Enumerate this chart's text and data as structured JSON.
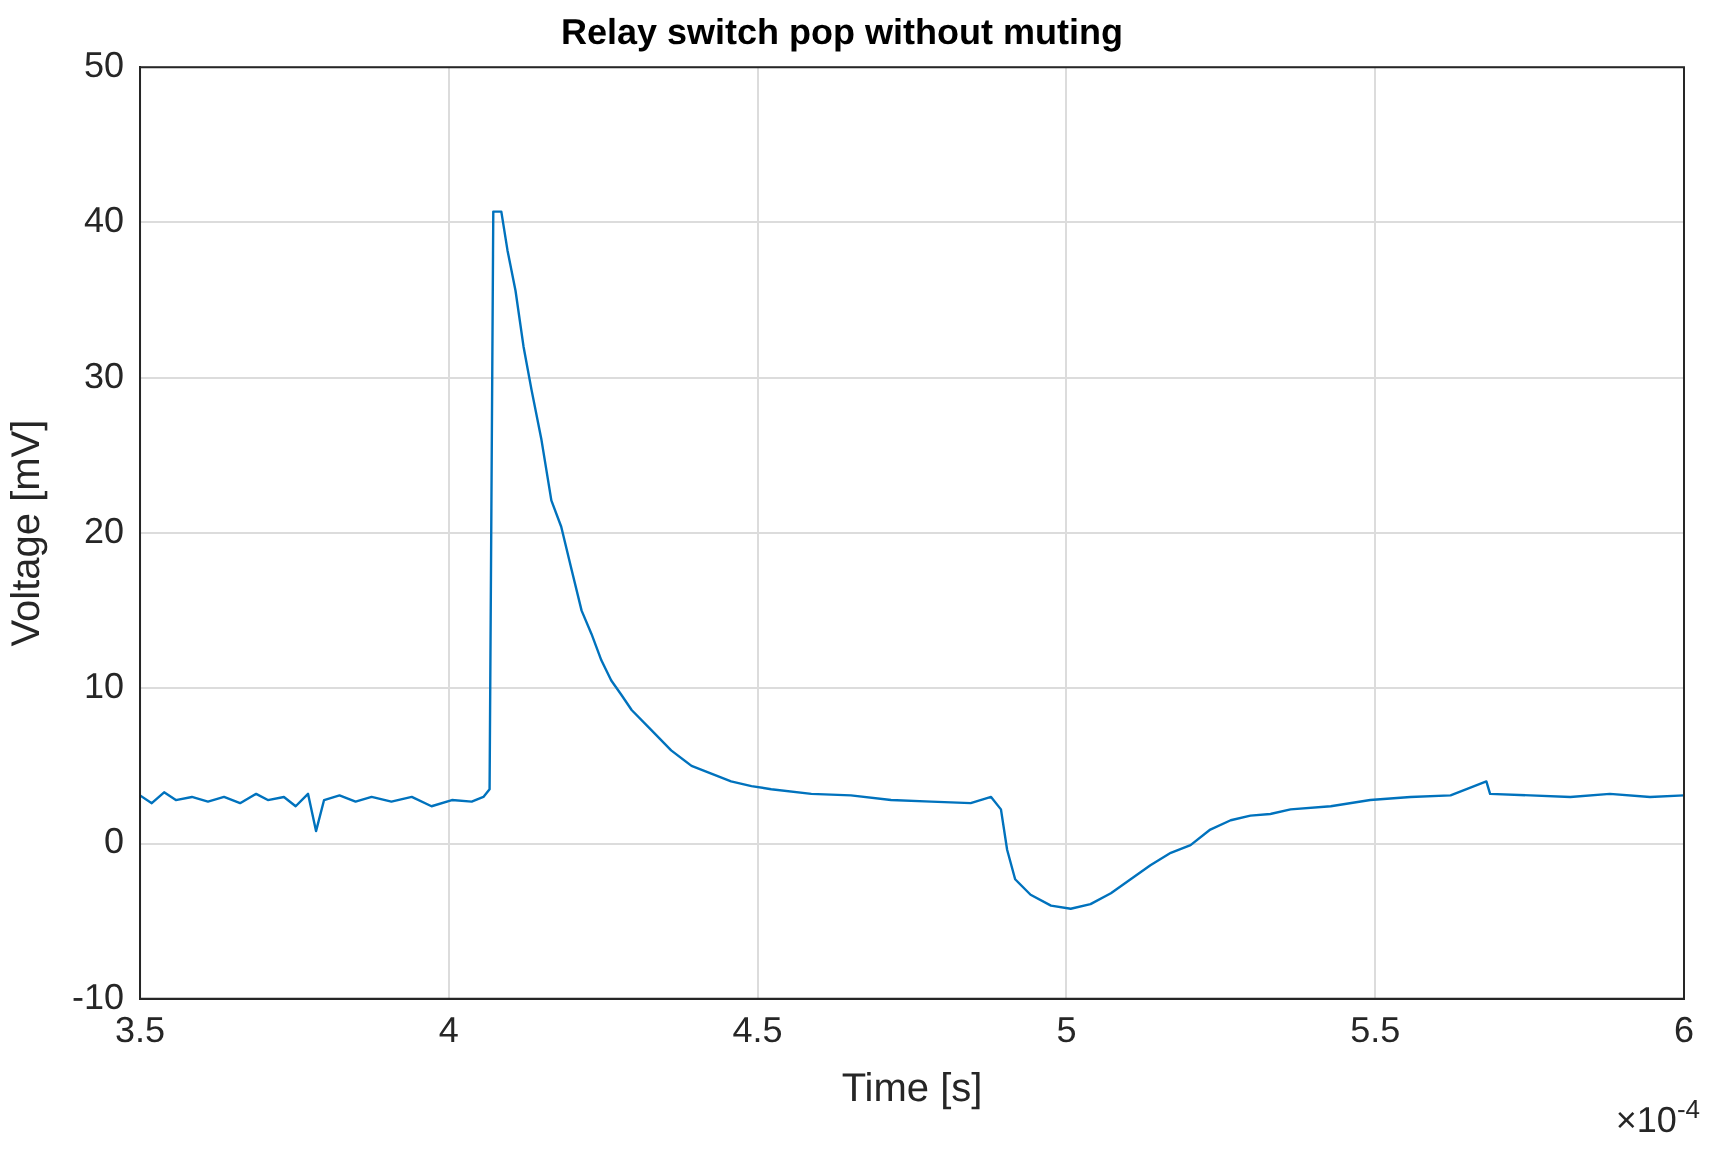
{
  "chart_data": {
    "type": "line",
    "title": "Relay switch pop without muting",
    "xlabel": "Time [s]",
    "ylabel": "Voltage [mV]",
    "annotations": [
      "×10$^{-4}$"
    ],
    "x": [
      3.5,
      3.519,
      3.539,
      3.558,
      3.584,
      3.61,
      3.636,
      3.662,
      3.688,
      3.707,
      3.733,
      3.752,
      3.772,
      3.785,
      3.798,
      3.823,
      3.849,
      3.875,
      3.907,
      3.94,
      3.972,
      4.005,
      4.037,
      4.056,
      4.066,
      4.072,
      4.085,
      4.095,
      4.108,
      4.121,
      4.134,
      4.15,
      4.166,
      4.182,
      4.199,
      4.215,
      4.231,
      4.247,
      4.263,
      4.279,
      4.296,
      4.328,
      4.36,
      4.393,
      4.425,
      4.457,
      4.49,
      4.522,
      4.587,
      4.651,
      4.716,
      4.781,
      4.845,
      4.878,
      4.894,
      4.904,
      4.917,
      4.942,
      4.975,
      5.007,
      5.039,
      5.072,
      5.104,
      5.136,
      5.169,
      5.201,
      5.233,
      5.266,
      5.298,
      5.33,
      5.363,
      5.428,
      5.492,
      5.557,
      5.622,
      5.68,
      5.686,
      5.751,
      5.816,
      5.88,
      5.945,
      6
    ],
    "series": [
      {
        "color": "#0072bd",
        "values": [
          3.1,
          2.6,
          3.3,
          2.8,
          3.0,
          2.7,
          3.0,
          2.6,
          3.2,
          2.8,
          3.0,
          2.4,
          3.2,
          0.8,
          2.8,
          3.1,
          2.7,
          3.0,
          2.7,
          3.0,
          2.4,
          2.8,
          2.7,
          3.0,
          3.5,
          40.7,
          40.7,
          38.2,
          35.6,
          32,
          29.2,
          26,
          22.1,
          20.4,
          17.6,
          15,
          13.5,
          11.8,
          10.5,
          9.6,
          8.6,
          7.3,
          6,
          5,
          4.5,
          4,
          3.7,
          3.5,
          3.2,
          3.1,
          2.8,
          2.7,
          2.6,
          3.0,
          2.2,
          -0.4,
          -2.3,
          -3.3,
          -4,
          -4.2,
          -3.9,
          -3.2,
          -2.3,
          -1.4,
          -0.6,
          -0.1,
          0.9,
          1.5,
          1.8,
          1.9,
          2.2,
          2.4,
          2.8,
          3.0,
          3.1,
          4,
          3.2,
          3.1,
          3.0,
          3.2,
          3.0,
          3.1
        ]
      }
    ],
    "xlim": [
      3.5,
      6
    ],
    "xticks": [
      3.5,
      4,
      4.5,
      5,
      5.5,
      6
    ],
    "ylim": [
      -10,
      50
    ],
    "yticks": [
      -10,
      0,
      10,
      20,
      30,
      40,
      50
    ],
    "grid": true,
    "legend": false,
    "marker": "none",
    "line_style": "solid"
  }
}
